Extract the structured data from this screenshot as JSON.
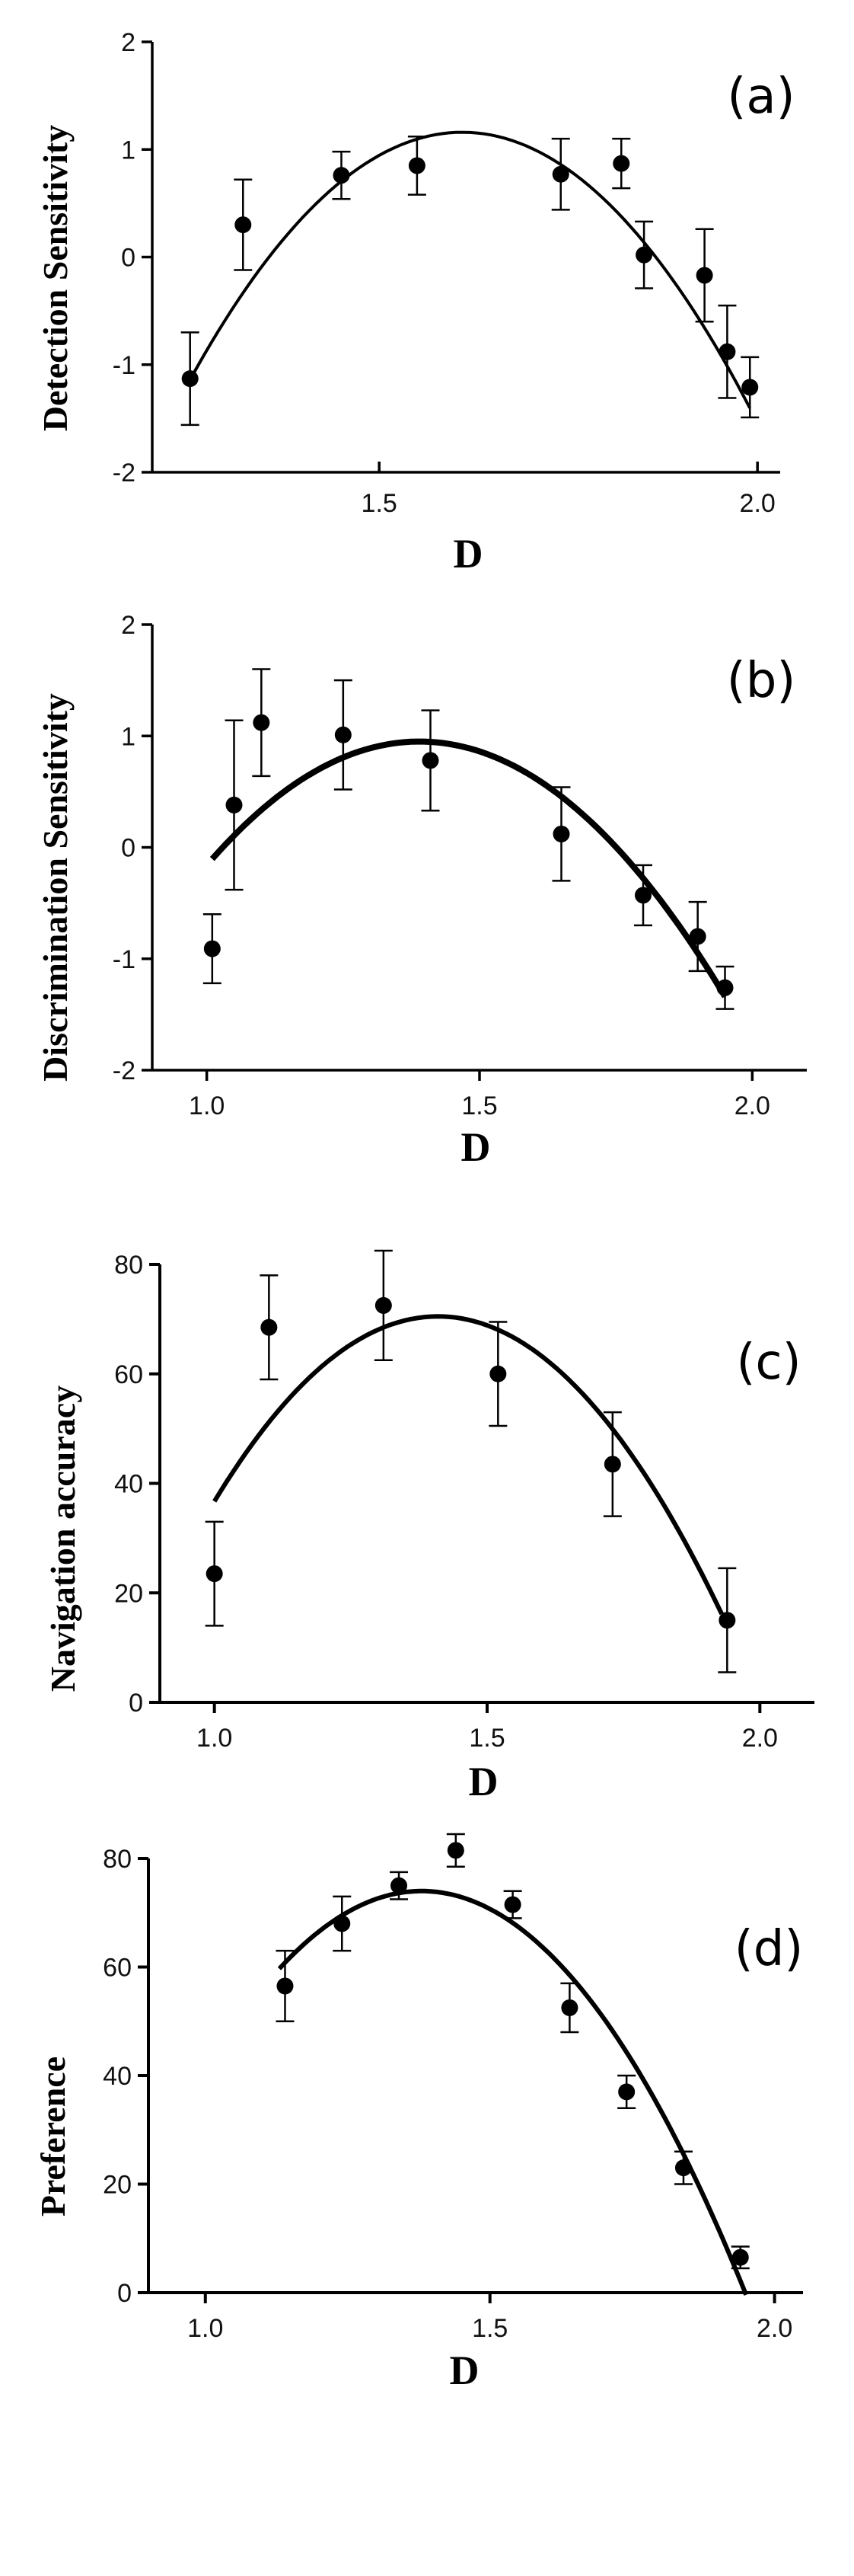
{
  "chart_data": [
    {
      "type": "scatter",
      "panel": "(a)",
      "xlabel": "D",
      "ylabel": "Detection Sensitivity",
      "xlim": [
        1.2,
        2.03
      ],
      "ylim": [
        -2,
        2
      ],
      "xticks": [
        1.5,
        2.0
      ],
      "xtick_labels": [
        "1.5",
        "2.0"
      ],
      "yticks": [
        -2,
        -1,
        0,
        1,
        2
      ],
      "ytick_labels": [
        "-2",
        "-1",
        "0",
        "1",
        "2"
      ],
      "grid": false,
      "x": [
        1.25,
        1.32,
        1.45,
        1.55,
        1.74,
        1.82,
        1.85,
        1.93,
        1.96,
        1.99
      ],
      "y": [
        -1.13,
        0.3,
        0.76,
        0.85,
        0.77,
        0.87,
        0.02,
        -0.17,
        -0.88,
        -1.21
      ],
      "err": [
        0.43,
        0.42,
        0.22,
        0.27,
        0.33,
        0.23,
        0.31,
        0.43,
        0.43,
        0.28
      ],
      "fit": {
        "type": "quadratic",
        "vertex_x": 1.61,
        "vertex_y": 1.16,
        "curvature": 17.75,
        "x_range": [
          1.25,
          1.99
        ]
      }
    },
    {
      "type": "scatter",
      "panel": "(b)",
      "xlabel": "D",
      "ylabel": "Discrimination Sensitivity",
      "xlim": [
        0.9,
        2.1
      ],
      "ylim": [
        -2,
        2
      ],
      "xticks": [
        1.0,
        1.5,
        2.0
      ],
      "xtick_labels": [
        "1.0",
        "1.5",
        "2.0"
      ],
      "yticks": [
        -2,
        -1,
        0,
        1,
        2
      ],
      "ytick_labels": [
        "-2",
        "-1",
        "0",
        "1",
        "2"
      ],
      "grid": false,
      "x": [
        1.01,
        1.05,
        1.1,
        1.25,
        1.41,
        1.65,
        1.8,
        1.9,
        1.95
      ],
      "y": [
        -0.91,
        0.38,
        1.12,
        1.01,
        0.78,
        0.12,
        -0.43,
        -0.8,
        -1.26
      ],
      "err": [
        0.31,
        0.76,
        0.48,
        0.49,
        0.45,
        0.42,
        0.27,
        0.31,
        0.19
      ],
      "fit": {
        "type": "quadratic",
        "vertex_x": 1.39,
        "vertex_y": 0.95,
        "curvature": 7.3,
        "x_range": [
          1.01,
          1.95
        ]
      }
    },
    {
      "type": "scatter",
      "panel": "(c)",
      "xlabel": "D",
      "ylabel": "Navigation accuracy",
      "xlim": [
        0.9,
        2.1
      ],
      "ylim": [
        0,
        80
      ],
      "xticks": [
        1.0,
        1.5,
        2.0
      ],
      "xtick_labels": [
        "1.0",
        "1.5",
        "2.0"
      ],
      "yticks": [
        0,
        20,
        40,
        60,
        80
      ],
      "ytick_labels": [
        "0",
        "20",
        "40",
        "60",
        "80"
      ],
      "grid": false,
      "x": [
        1.0,
        1.1,
        1.31,
        1.52,
        1.73,
        1.94
      ],
      "y": [
        23.5,
        68.5,
        72.5,
        60,
        43.5,
        15
      ],
      "err": [
        9.5,
        9.5,
        10,
        9.5,
        9.5,
        9.5
      ],
      "fit": {
        "type": "quadratic",
        "vertex_x": 1.41,
        "vertex_y": 70.5,
        "curvature": 201,
        "x_range": [
          1.0,
          1.93
        ]
      }
    },
    {
      "type": "scatter",
      "panel": "(d)",
      "xlabel": "D",
      "ylabel": "Preference",
      "xlim": [
        0.9,
        2.05
      ],
      "ylim": [
        0,
        80
      ],
      "xticks": [
        1.0,
        1.5,
        2.0
      ],
      "xtick_labels": [
        "1.0",
        "1.5",
        "2.0"
      ],
      "yticks": [
        0,
        20,
        40,
        60,
        80
      ],
      "ytick_labels": [
        "0",
        "20",
        "40",
        "60",
        "80"
      ],
      "grid": false,
      "x": [
        1.14,
        1.24,
        1.34,
        1.44,
        1.54,
        1.64,
        1.74,
        1.84,
        1.94
      ],
      "y": [
        56.5,
        68,
        75,
        81.5,
        71.5,
        52.5,
        37,
        23,
        6.5
      ],
      "err": [
        6.5,
        5,
        2.5,
        3,
        2.5,
        4.5,
        3,
        3,
        2
      ],
      "fit": {
        "type": "quadratic",
        "vertex_x": 1.38,
        "vertex_y": 74,
        "curvature": 229,
        "x_range": [
          1.13,
          1.95
        ]
      }
    }
  ]
}
